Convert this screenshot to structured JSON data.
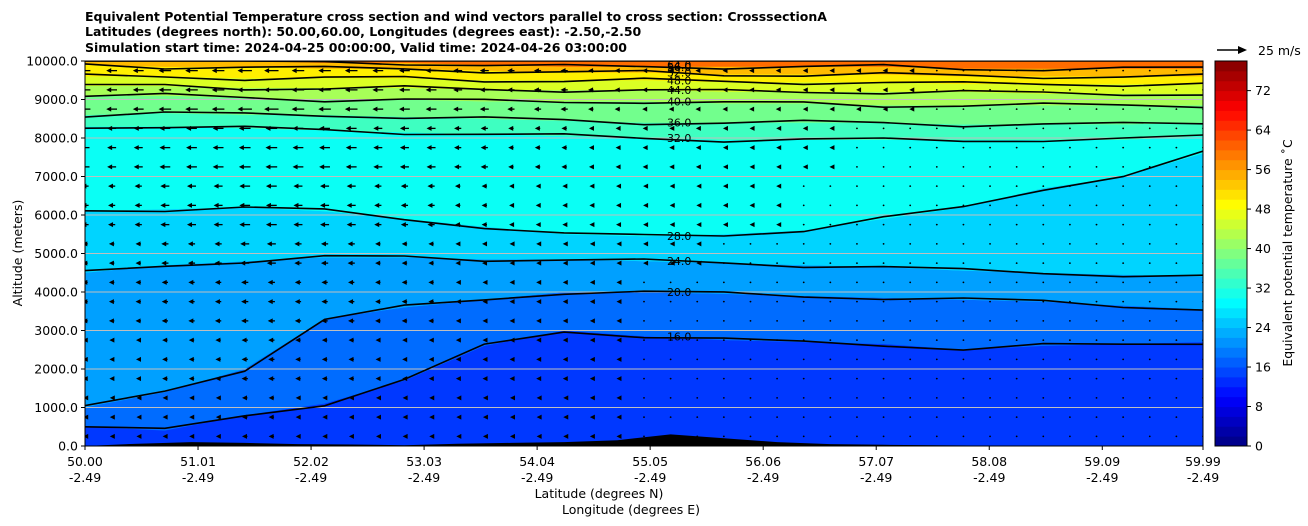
{
  "chart_data": {
    "type": "contour",
    "title_lines": [
      "Equivalent Potential Temperature cross section and wind vectors parallel to cross section: CrosssectionA",
      "Latitudes (degrees north): 50.00,60.00, Longitudes (degrees east): -2.50,-2.50",
      "Simulation start time: 2024-04-25 00:00:00, Valid time: 2024-04-26 03:00:00"
    ],
    "ylabel": "Altitude (meters)",
    "xlabel_lat": "Latitude (degrees N)",
    "xlabel_lon": "Longitude (degrees E)",
    "ylim": [
      0,
      10000
    ],
    "y_ticks": [
      "0.0",
      "1000.0",
      "2000.0",
      "3000.0",
      "4000.0",
      "5000.0",
      "6000.0",
      "7000.0",
      "8000.0",
      "9000.0",
      "10000.0"
    ],
    "y_tick_values": [
      0,
      1000,
      2000,
      3000,
      4000,
      5000,
      6000,
      7000,
      8000,
      9000,
      10000
    ],
    "xlim": [
      50.0,
      59.99
    ],
    "x_tick_values": [
      50.0,
      51.01,
      52.02,
      53.03,
      54.04,
      55.05,
      56.06,
      57.07,
      58.08,
      59.09,
      59.99
    ],
    "x_ticks_lat": [
      "50.00",
      "51.01",
      "52.02",
      "53.03",
      "54.04",
      "55.05",
      "56.06",
      "57.07",
      "58.08",
      "59.09",
      "59.99"
    ],
    "x_ticks_lon": [
      "-2.49",
      "-2.49",
      "-2.49",
      "-2.49",
      "-2.49",
      "-2.49",
      "-2.49",
      "-2.49",
      "-2.49",
      "-2.49",
      "-2.49"
    ],
    "colorbar_label": "Equivalent potential temperature ˚C",
    "colorbar_ticks": [
      "0",
      "8",
      "16",
      "24",
      "32",
      "40",
      "48",
      "56",
      "64",
      "72"
    ],
    "colorbar_tick_values": [
      0,
      8,
      16,
      24,
      32,
      40,
      48,
      56,
      64,
      72
    ],
    "colorbar_range": [
      0,
      78
    ],
    "colormap": "jet",
    "grid": "horizontal",
    "quiver_key_label": "25 m/s",
    "contour_levels": [
      {
        "level": 16,
        "label": "16.0",
        "heights": [
          500,
          400,
          800,
          1100,
          1700,
          2600,
          3000,
          2850,
          2750,
          2700,
          2650,
          2500,
          2600,
          2650,
          2700
        ]
      },
      {
        "level": 20,
        "label": "20.0",
        "heights": [
          1000,
          1400,
          2000,
          3300,
          3600,
          3800,
          4000,
          4000,
          3950,
          3900,
          3850,
          3800,
          3750,
          3650,
          3550
        ]
      },
      {
        "level": 24,
        "label": "24.0",
        "heights": [
          4500,
          4700,
          4800,
          4900,
          4900,
          4850,
          4850,
          4800,
          4750,
          4700,
          4650,
          4550,
          4500,
          4450,
          4400
        ]
      },
      {
        "level": 28,
        "label": "28.0",
        "heights": [
          6100,
          6150,
          6200,
          6100,
          5900,
          5700,
          5500,
          5450,
          5500,
          5600,
          5900,
          6200,
          6700,
          7000,
          7600
        ]
      },
      {
        "level": 32,
        "label": "32.0",
        "heights": [
          8300,
          8300,
          8250,
          8200,
          8150,
          8100,
          8050,
          8000,
          7950,
          7950,
          7950,
          7950,
          7950,
          7950,
          8050
        ]
      },
      {
        "level": 36,
        "label": "36.0",
        "heights": [
          8600,
          8650,
          8600,
          8600,
          8550,
          8500,
          8450,
          8400,
          8400,
          8400,
          8400,
          8350,
          8350,
          8350,
          8400
        ]
      },
      {
        "level": 40,
        "label": "40.0",
        "heights": [
          9100,
          9100,
          9050,
          9000,
          9000,
          8950,
          8950,
          8950,
          8900,
          8900,
          8850,
          8850,
          8850,
          8850,
          8850
        ]
      },
      {
        "level": 44,
        "label": "44.0",
        "heights": [
          9350,
          9350,
          9300,
          9300,
          9300,
          9250,
          9250,
          9250,
          9200,
          9200,
          9200,
          9200,
          9150,
          9150,
          9150
        ]
      },
      {
        "level": 48,
        "label": "48.0",
        "heights": [
          9600,
          9600,
          9550,
          9550,
          9550,
          9500,
          9500,
          9500,
          9450,
          9450,
          9450,
          9400,
          9400,
          9400,
          9400
        ]
      },
      {
        "level": 52,
        "label": "52.0",
        "heights": [
          9900,
          9850,
          9850,
          9800,
          9800,
          9750,
          9700,
          9700,
          9650,
          9650,
          9650,
          9600,
          9600,
          9600,
          9600
        ]
      },
      {
        "level": 56,
        "label": "56.0",
        "heights": [
          10000,
          10000,
          10000,
          9950,
          9950,
          9900,
          9850,
          9850,
          9850,
          9850,
          9850,
          9800,
          9800,
          9800,
          9800
        ]
      },
      {
        "level": 64,
        "label": "64.0",
        "heights": [
          10000,
          10000,
          10000,
          10000,
          10000,
          10000,
          10000,
          10000,
          10000,
          10000,
          10000,
          10000,
          10000,
          10000,
          10000
        ]
      }
    ],
    "terrain_heights": [
      0,
      60,
      100,
      80,
      50,
      40,
      20,
      60,
      80,
      100,
      150,
      300,
      200,
      100,
      50,
      30,
      20,
      10,
      0,
      0,
      0,
      0
    ],
    "wind_u": [
      [
        -12,
        -14,
        -16,
        -14,
        -12,
        -10,
        -8,
        -6,
        -4,
        -3,
        -2,
        -2,
        -1,
        -1,
        -1,
        -1
      ],
      [
        -10,
        -12,
        -13,
        -12,
        -10,
        -8,
        -6,
        -4,
        -3,
        -2,
        -2,
        -1,
        -1,
        -1,
        -1,
        -1
      ],
      [
        -8,
        -10,
        -12,
        -10,
        -8,
        -6,
        -4,
        -3,
        -2,
        -2,
        -1,
        -1,
        -1,
        -1,
        -1,
        -1
      ],
      [
        -6,
        -8,
        -10,
        -8,
        -6,
        -5,
        -3,
        -2,
        -2,
        -1,
        -1,
        -1,
        -1,
        -1,
        -1,
        -1
      ],
      [
        -6,
        -7,
        -8,
        -7,
        -6,
        -4,
        -3,
        -2,
        -1,
        -1,
        -1,
        -1,
        -1,
        -1,
        -1,
        -1
      ],
      [
        -5,
        -6,
        -7,
        -6,
        -5,
        -4,
        -3,
        -2,
        -1,
        -1,
        -1,
        -1,
        -1,
        -1,
        -1,
        -1
      ],
      [
        -4,
        -5,
        -6,
        -5,
        -4,
        -3,
        -2,
        -2,
        -1,
        -1,
        -1,
        -1,
        -1,
        -1,
        -1,
        -1
      ]
    ]
  }
}
